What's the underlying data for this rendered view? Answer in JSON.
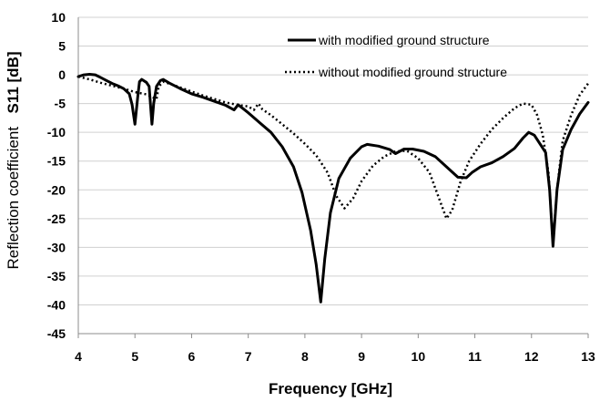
{
  "chart_data": {
    "type": "line",
    "xlabel": "Frequency [GHz]",
    "ylabel": "Reflection coefficient",
    "ylabel_quantity": "S11 [dB]",
    "xlim": [
      4,
      13
    ],
    "ylim": [
      -45,
      10
    ],
    "xticks": [
      "4",
      "5",
      "6",
      "7",
      "8",
      "9",
      "10",
      "11",
      "12",
      "13"
    ],
    "yticks": [
      "10",
      "5",
      "0",
      "-5",
      "-10",
      "-15",
      "-20",
      "-25",
      "-30",
      "-35",
      "-40",
      "-45"
    ],
    "grid": "horizontal",
    "legend_position": "top-right",
    "series": [
      {
        "name": "with modified ground structure",
        "style": "solid",
        "color": "#000000",
        "points": [
          [
            4.0,
            -0.3
          ],
          [
            4.1,
            0.0
          ],
          [
            4.2,
            0.1
          ],
          [
            4.3,
            0.0
          ],
          [
            4.4,
            -0.5
          ],
          [
            4.5,
            -1.0
          ],
          [
            4.6,
            -1.5
          ],
          [
            4.7,
            -1.9
          ],
          [
            4.8,
            -2.4
          ],
          [
            4.9,
            -3.3
          ],
          [
            4.95,
            -5.2
          ],
          [
            5.0,
            -8.6
          ],
          [
            5.05,
            -3.8
          ],
          [
            5.08,
            -1.2
          ],
          [
            5.12,
            -0.8
          ],
          [
            5.2,
            -1.3
          ],
          [
            5.25,
            -2.0
          ],
          [
            5.3,
            -8.6
          ],
          [
            5.33,
            -5.0
          ],
          [
            5.38,
            -2.0
          ],
          [
            5.45,
            -1.0
          ],
          [
            5.5,
            -0.8
          ],
          [
            5.6,
            -1.4
          ],
          [
            5.8,
            -2.4
          ],
          [
            6.0,
            -3.3
          ],
          [
            6.2,
            -3.9
          ],
          [
            6.4,
            -4.6
          ],
          [
            6.6,
            -5.3
          ],
          [
            6.75,
            -6.1
          ],
          [
            6.82,
            -5.2
          ],
          [
            6.9,
            -5.8
          ],
          [
            7.0,
            -6.6
          ],
          [
            7.2,
            -8.3
          ],
          [
            7.4,
            -10.0
          ],
          [
            7.6,
            -12.5
          ],
          [
            7.8,
            -16.0
          ],
          [
            7.95,
            -20.5
          ],
          [
            8.1,
            -27.0
          ],
          [
            8.2,
            -33.0
          ],
          [
            8.28,
            -39.5
          ],
          [
            8.35,
            -32.0
          ],
          [
            8.45,
            -24.0
          ],
          [
            8.6,
            -18.0
          ],
          [
            8.8,
            -14.5
          ],
          [
            9.0,
            -12.5
          ],
          [
            9.1,
            -12.1
          ],
          [
            9.3,
            -12.4
          ],
          [
            9.5,
            -13.0
          ],
          [
            9.6,
            -13.7
          ],
          [
            9.75,
            -12.9
          ],
          [
            9.9,
            -12.9
          ],
          [
            10.1,
            -13.3
          ],
          [
            10.3,
            -14.2
          ],
          [
            10.5,
            -16.0
          ],
          [
            10.7,
            -17.8
          ],
          [
            10.85,
            -17.9
          ],
          [
            10.95,
            -17.0
          ],
          [
            11.1,
            -16.0
          ],
          [
            11.3,
            -15.3
          ],
          [
            11.5,
            -14.2
          ],
          [
            11.7,
            -12.8
          ],
          [
            11.85,
            -11.0
          ],
          [
            11.95,
            -10.0
          ],
          [
            12.05,
            -10.5
          ],
          [
            12.15,
            -12.0
          ],
          [
            12.25,
            -13.5
          ],
          [
            12.32,
            -20.0
          ],
          [
            12.38,
            -29.8
          ],
          [
            12.45,
            -20.0
          ],
          [
            12.55,
            -13.0
          ],
          [
            12.7,
            -9.5
          ],
          [
            12.85,
            -6.8
          ],
          [
            13.0,
            -4.8
          ]
        ]
      },
      {
        "name": "without modified ground structure",
        "style": "dotted",
        "color": "#000000",
        "points": [
          [
            4.0,
            -0.3
          ],
          [
            4.2,
            -0.8
          ],
          [
            4.4,
            -1.4
          ],
          [
            4.6,
            -1.9
          ],
          [
            4.8,
            -2.4
          ],
          [
            5.0,
            -3.0
          ],
          [
            5.2,
            -3.4
          ],
          [
            5.38,
            -4.2
          ],
          [
            5.42,
            -2.0
          ],
          [
            5.5,
            -1.2
          ],
          [
            5.6,
            -1.5
          ],
          [
            5.8,
            -2.2
          ],
          [
            6.0,
            -2.9
          ],
          [
            6.2,
            -3.6
          ],
          [
            6.4,
            -4.2
          ],
          [
            6.6,
            -4.8
          ],
          [
            6.8,
            -5.2
          ],
          [
            7.0,
            -5.5
          ],
          [
            7.1,
            -6.1
          ],
          [
            7.18,
            -5.0
          ],
          [
            7.25,
            -6.0
          ],
          [
            7.4,
            -7.0
          ],
          [
            7.6,
            -8.6
          ],
          [
            7.8,
            -10.2
          ],
          [
            8.0,
            -12.0
          ],
          [
            8.2,
            -14.0
          ],
          [
            8.4,
            -17.0
          ],
          [
            8.55,
            -21.0
          ],
          [
            8.7,
            -23.2
          ],
          [
            8.85,
            -21.5
          ],
          [
            9.0,
            -18.5
          ],
          [
            9.2,
            -15.8
          ],
          [
            9.4,
            -14.2
          ],
          [
            9.6,
            -13.3
          ],
          [
            9.8,
            -13.2
          ],
          [
            10.0,
            -14.5
          ],
          [
            10.2,
            -17.0
          ],
          [
            10.35,
            -21.0
          ],
          [
            10.5,
            -25.0
          ],
          [
            10.6,
            -23.5
          ],
          [
            10.75,
            -18.5
          ],
          [
            10.9,
            -15.0
          ],
          [
            11.1,
            -12.0
          ],
          [
            11.3,
            -9.5
          ],
          [
            11.5,
            -7.5
          ],
          [
            11.7,
            -5.8
          ],
          [
            11.85,
            -5.0
          ],
          [
            12.0,
            -5.2
          ],
          [
            12.1,
            -7.0
          ],
          [
            12.2,
            -10.5
          ],
          [
            12.3,
            -17.0
          ],
          [
            12.38,
            -29.0
          ],
          [
            12.45,
            -20.0
          ],
          [
            12.55,
            -11.5
          ],
          [
            12.7,
            -7.0
          ],
          [
            12.85,
            -3.5
          ],
          [
            13.0,
            -1.5
          ]
        ]
      }
    ]
  }
}
